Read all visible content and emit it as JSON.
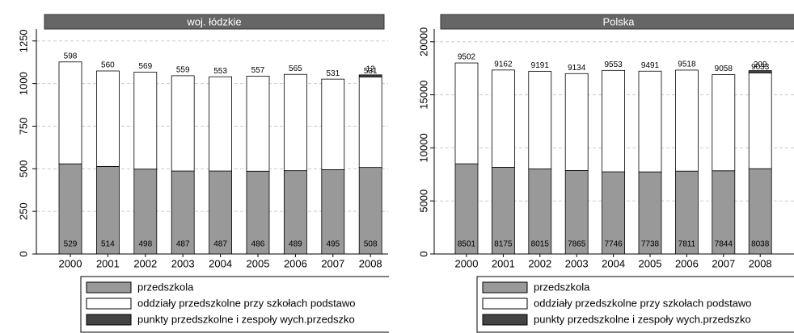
{
  "chart_data": [
    {
      "type": "stacked-bar",
      "title": "woj. łódzkie",
      "categories": [
        "2000",
        "2001",
        "2002",
        "2003",
        "2004",
        "2005",
        "2006",
        "2007",
        "2008"
      ],
      "series": [
        {
          "name": "przedszkola",
          "color": "#999999",
          "values": [
            529,
            514,
            498,
            487,
            487,
            486,
            489,
            495,
            508
          ]
        },
        {
          "name": "oddziały przedszkolne przy szkołach podstawo",
          "color": "#ffffff",
          "values": [
            598,
            560,
            569,
            559,
            553,
            557,
            565,
            531,
            531
          ]
        },
        {
          "name": "punkty przedszkolne i zespoły wych.przedszko",
          "color": "#444444",
          "values": [
            null,
            null,
            null,
            null,
            null,
            null,
            null,
            null,
            12
          ]
        }
      ],
      "ylim": [
        0,
        1320
      ],
      "yticks": [
        0,
        250,
        500,
        750,
        1000,
        1250
      ],
      "grid": true
    },
    {
      "type": "stacked-bar",
      "title": "Polska",
      "categories": [
        "2000",
        "2001",
        "2002",
        "2003",
        "2004",
        "2005",
        "2006",
        "2007",
        "2008"
      ],
      "series": [
        {
          "name": "przedszkola",
          "color": "#999999",
          "values": [
            8501,
            8175,
            8015,
            7865,
            7746,
            7738,
            7811,
            7844,
            8038
          ]
        },
        {
          "name": "oddziały przedszkolne przy szkołach podstawo",
          "color": "#ffffff",
          "values": [
            9502,
            9162,
            9191,
            9134,
            9553,
            9491,
            9518,
            9058,
            9033
          ]
        },
        {
          "name": "punkty przedszkolne i zespoły wych.przedszko",
          "color": "#444444",
          "values": [
            null,
            null,
            null,
            null,
            null,
            null,
            null,
            null,
            209
          ]
        }
      ],
      "ylim": [
        0,
        21200
      ],
      "yticks": [
        0,
        5000,
        10000,
        15000,
        20000
      ],
      "grid": true
    }
  ]
}
